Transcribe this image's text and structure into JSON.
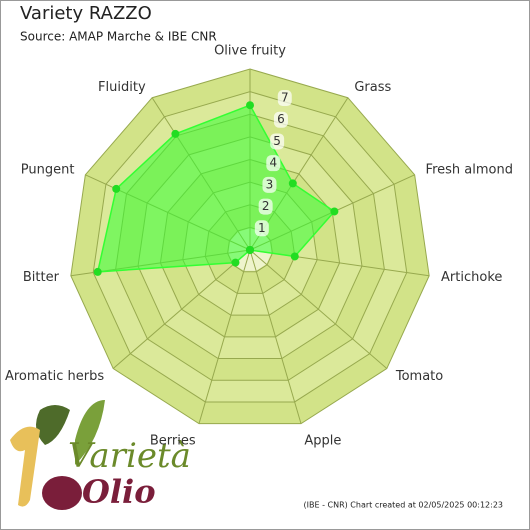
{
  "chart_data": {
    "type": "radar",
    "title": "Variety RAZZO",
    "subtitle": "Source: AMAP Marche & IBE CNR",
    "categories": [
      "Olive fruity",
      "Grass",
      "Fresh almond",
      "Artichoke",
      "Tomato",
      "Apple",
      "Berries",
      "Aromatic herbs",
      "Bitter",
      "Pungent",
      "Fluidity"
    ],
    "values": [
      6.4,
      3.5,
      4.1,
      2.0,
      0,
      0,
      0,
      0.85,
      6.8,
      6.5,
      6.1
    ],
    "color": "#33ff33",
    "rlim": [
      0,
      8
    ],
    "rticks": [
      1,
      2,
      3,
      4,
      5,
      6,
      7
    ],
    "footer": "(IBE - CNR) Chart created at 02/05/2025 00:12:23",
    "logo": {
      "top": "Varietà",
      "bottom": "Olio"
    }
  }
}
